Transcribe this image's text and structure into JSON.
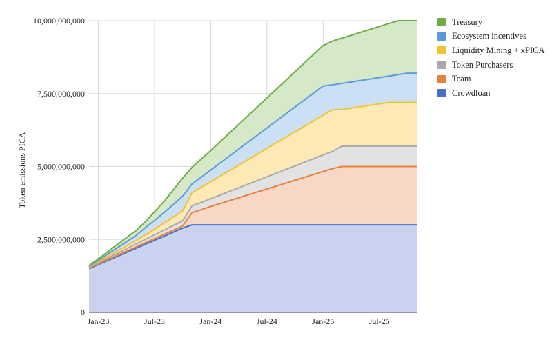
{
  "chart_data": {
    "type": "area",
    "stacked": true,
    "xlabel": "",
    "ylabel": "Token emissions PICA",
    "x": [
      "2022-12",
      "2023-01",
      "2023-02",
      "2023-03",
      "2023-04",
      "2023-05",
      "2023-06",
      "2023-07",
      "2023-08",
      "2023-09",
      "2023-10",
      "2023-11",
      "2023-12",
      "2024-01",
      "2024-02",
      "2024-03",
      "2024-04",
      "2024-05",
      "2024-06",
      "2024-07",
      "2024-08",
      "2024-09",
      "2024-10",
      "2024-11",
      "2024-12",
      "2025-01",
      "2025-02",
      "2025-03",
      "2025-04",
      "2025-05",
      "2025-06",
      "2025-07",
      "2025-08",
      "2025-09",
      "2025-10",
      "2025-11"
    ],
    "x_tick_labels": [
      "Jan-23",
      "Jul-23",
      "Jan-24",
      "Jul-24",
      "Jan-25",
      "Jul-25"
    ],
    "y_tick_values": [
      0,
      2500000000,
      5000000000,
      7500000000,
      10000000000
    ],
    "y_tick_labels": [
      "0",
      "2,500,000,000",
      "5,000,000,000",
      "7,500,000,000",
      "10,000,000,000"
    ],
    "ylim": [
      0,
      10000000000
    ],
    "grid": true,
    "legend_position": "right",
    "series_cumulative": [
      {
        "name": "Crowdloan",
        "color": "#4a6fc0",
        "fill": "#c9d3ef",
        "values": [
          1500000000,
          1639000000,
          1778000000,
          1917000000,
          2056000000,
          2194000000,
          2333000000,
          2472000000,
          2611000000,
          2750000000,
          2889000000,
          3000000000,
          3000000000,
          3000000000,
          3000000000,
          3000000000,
          3000000000,
          3000000000,
          3000000000,
          3000000000,
          3000000000,
          3000000000,
          3000000000,
          3000000000,
          3000000000,
          3000000000,
          3000000000,
          3000000000,
          3000000000,
          3000000000,
          3000000000,
          3000000000,
          3000000000,
          3000000000,
          3000000000,
          3000000000
        ]
      },
      {
        "name": "Team",
        "color": "#e8813e",
        "fill": "#f8d8c5",
        "values": [
          1520000000,
          1664000000,
          1808000000,
          1952000000,
          2096000000,
          2240000000,
          2384000000,
          2528000000,
          2672000000,
          2816000000,
          2960000000,
          3420000000,
          3520000000,
          3630000000,
          3730000000,
          3830000000,
          3930000000,
          4030000000,
          4130000000,
          4230000000,
          4330000000,
          4430000000,
          4530000000,
          4630000000,
          4730000000,
          4830000000,
          4930000000,
          5000000000,
          5000000000,
          5000000000,
          5000000000,
          5000000000,
          5000000000,
          5000000000,
          5000000000,
          5000000000
        ]
      },
      {
        "name": "Token Purchasers",
        "color": "#a9a9a9",
        "fill": "#e2e2e2",
        "values": [
          1540000000,
          1700000000,
          1860000000,
          2020000000,
          2180000000,
          2340000000,
          2500000000,
          2660000000,
          2820000000,
          2980000000,
          3140000000,
          3650000000,
          3770000000,
          3900000000,
          4020000000,
          4150000000,
          4270000000,
          4400000000,
          4520000000,
          4650000000,
          4770000000,
          4900000000,
          5020000000,
          5150000000,
          5270000000,
          5400000000,
          5520000000,
          5700000000,
          5700000000,
          5700000000,
          5700000000,
          5700000000,
          5700000000,
          5700000000,
          5700000000,
          5700000000
        ]
      },
      {
        "name": "Liquidity Mining + xPICA",
        "color": "#f2c230",
        "fill": "#fde9b5",
        "values": [
          1560000000,
          1740000000,
          1920000000,
          2100000000,
          2280000000,
          2460000000,
          2650000000,
          2850000000,
          3060000000,
          3270000000,
          3480000000,
          4100000000,
          4290000000,
          4480000000,
          4670000000,
          4860000000,
          5050000000,
          5240000000,
          5430000000,
          5620000000,
          5810000000,
          6000000000,
          6190000000,
          6380000000,
          6570000000,
          6760000000,
          6950000000,
          6950000000,
          7000000000,
          7050000000,
          7100000000,
          7150000000,
          7200000000,
          7200000000,
          7200000000,
          7200000000
        ]
      },
      {
        "name": "Ecosystem incentives",
        "color": "#5b9bd5",
        "fill": "#cbe0f4",
        "values": [
          1580000000,
          1790000000,
          2000000000,
          2210000000,
          2420000000,
          2630000000,
          2900000000,
          3150000000,
          3420000000,
          3700000000,
          3980000000,
          4400000000,
          4640000000,
          4880000000,
          5120000000,
          5360000000,
          5600000000,
          5840000000,
          6080000000,
          6320000000,
          6560000000,
          6800000000,
          7040000000,
          7280000000,
          7520000000,
          7760000000,
          7800000000,
          7850000000,
          7900000000,
          7950000000,
          8000000000,
          8050000000,
          8100000000,
          8150000000,
          8200000000,
          8200000000
        ]
      },
      {
        "name": "Treasury",
        "color": "#6fac46",
        "fill": "#d5e8c8",
        "values": [
          1600000000,
          1840000000,
          2080000000,
          2320000000,
          2560000000,
          2800000000,
          3100000000,
          3450000000,
          3800000000,
          4200000000,
          4600000000,
          4970000000,
          5260000000,
          5550000000,
          5850000000,
          6150000000,
          6450000000,
          6750000000,
          7050000000,
          7350000000,
          7650000000,
          7950000000,
          8250000000,
          8550000000,
          8850000000,
          9150000000,
          9300000000,
          9400000000,
          9500000000,
          9600000000,
          9700000000,
          9800000000,
          9900000000,
          10000000000,
          10000000000,
          10000000000
        ]
      }
    ]
  }
}
